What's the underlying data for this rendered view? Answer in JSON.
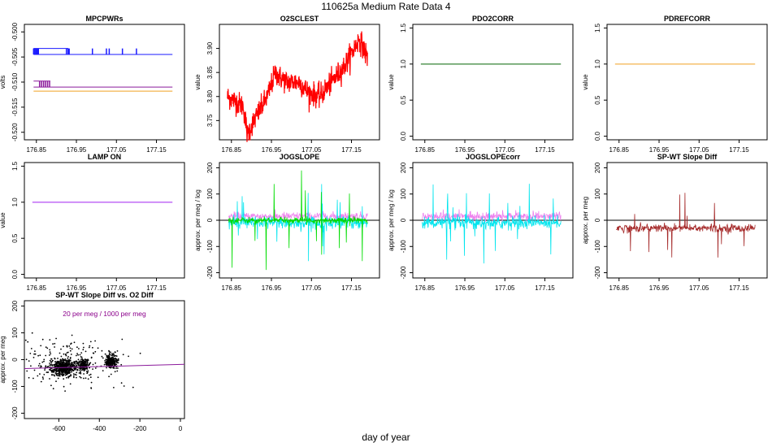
{
  "page_title": "110625a   Medium Rate Data 4",
  "x_caption": "day of year",
  "chart_data": [
    {
      "id": "mpcpwrs",
      "type": "line",
      "title": "MPCPWRs",
      "ylabel": "volts",
      "xlim": [
        176.82,
        177.22
      ],
      "ylim": [
        -0.5215,
        -0.4985
      ],
      "x_ticks": [
        176.85,
        176.95,
        177.05,
        177.15
      ],
      "x_tick_labels": [
        "176.85",
        "176.95",
        "177.05",
        "177.15"
      ],
      "y_ticks": [
        -0.52,
        -0.515,
        -0.51,
        -0.505,
        -0.5
      ],
      "y_tick_labels": [
        "-0.520",
        "-0.515",
        "-0.510",
        "-0.505",
        "-0.500"
      ],
      "series": [
        {
          "name": "blue",
          "color": "#1a1aff",
          "level": -0.5045,
          "spike_to": -0.5033,
          "spikes": [
            176.843,
            176.846,
            176.849,
            176.852,
            176.855,
            176.925,
            176.929,
            176.932,
            176.99,
            177.025,
            177.032,
            177.065,
            177.1
          ]
        },
        {
          "name": "purple",
          "color": "#8b1a9b",
          "level": -0.511,
          "spike_to": -0.5098,
          "spikes": [
            176.858,
            176.863,
            176.868,
            176.873,
            176.878,
            176.883
          ]
        },
        {
          "name": "orange",
          "color": "#f0a020",
          "level": -0.5118,
          "spike_to": null,
          "spikes": []
        }
      ]
    },
    {
      "id": "o2sclest",
      "type": "line",
      "title": "O2SCLEST",
      "ylabel": "value",
      "xlim": [
        176.82,
        177.22
      ],
      "ylim": [
        3.71,
        3.95
      ],
      "x_ticks": [
        176.85,
        176.95,
        177.05,
        177.15
      ],
      "x_tick_labels": [
        "176.85",
        "176.95",
        "177.05",
        "177.15"
      ],
      "y_ticks": [
        3.75,
        3.8,
        3.85,
        3.9
      ],
      "y_tick_labels": [
        "3.75",
        "3.80",
        "3.85",
        "3.90"
      ],
      "series": [
        {
          "name": "O2SCLEST",
          "color": "#ff0000",
          "noise": 0.012,
          "x": [
            176.84,
            176.86,
            176.88,
            176.89,
            176.9,
            176.92,
            176.94,
            176.96,
            176.97,
            176.99,
            177.02,
            177.04,
            177.07,
            177.1,
            177.13,
            177.15,
            177.17,
            177.19
          ],
          "y": [
            3.8,
            3.79,
            3.78,
            3.72,
            3.74,
            3.77,
            3.8,
            3.85,
            3.84,
            3.83,
            3.83,
            3.81,
            3.8,
            3.83,
            3.86,
            3.89,
            3.92,
            3.88
          ]
        }
      ]
    },
    {
      "id": "pdo2corr",
      "type": "line",
      "title": "PDO2CORR",
      "ylabel": "value",
      "xlim": [
        176.82,
        177.22
      ],
      "ylim": [
        -0.05,
        1.55
      ],
      "x_ticks": [
        176.85,
        176.95,
        177.05,
        177.15
      ],
      "x_tick_labels": [
        "176.85",
        "176.95",
        "177.05",
        "177.15"
      ],
      "y_ticks": [
        0.0,
        0.5,
        1.0,
        1.5
      ],
      "y_tick_labels": [
        "0.0",
        "0.5",
        "1.0",
        "1.5"
      ],
      "series": [
        {
          "name": "PDO2CORR",
          "color": "#006400",
          "x": [
            176.84,
            177.19
          ],
          "y": [
            1.0,
            1.0
          ]
        }
      ]
    },
    {
      "id": "pdrefcorr",
      "type": "line",
      "title": "PDREFCORR",
      "ylabel": "value",
      "xlim": [
        176.82,
        177.22
      ],
      "ylim": [
        -0.05,
        1.55
      ],
      "x_ticks": [
        176.85,
        176.95,
        177.05,
        177.15
      ],
      "x_tick_labels": [
        "176.85",
        "176.95",
        "177.05",
        "177.15"
      ],
      "y_ticks": [
        0.0,
        0.5,
        1.0,
        1.5
      ],
      "y_tick_labels": [
        "0.0",
        "0.5",
        "1.0",
        "1.5"
      ],
      "series": [
        {
          "name": "PDREFCORR",
          "color": "#f0a020",
          "x": [
            176.84,
            177.19
          ],
          "y": [
            1.0,
            1.0
          ]
        }
      ]
    },
    {
      "id": "lampon",
      "type": "line",
      "title": "LAMP ON",
      "ylabel": "value",
      "xlim": [
        176.82,
        177.22
      ],
      "ylim": [
        -0.05,
        1.55
      ],
      "x_ticks": [
        176.85,
        176.95,
        177.05,
        177.15
      ],
      "x_tick_labels": [
        "176.85",
        "176.95",
        "177.05",
        "177.15"
      ],
      "y_ticks": [
        0.0,
        0.5,
        1.0,
        1.5
      ],
      "y_tick_labels": [
        "0.0",
        "0.5",
        "1.0",
        "1.5"
      ],
      "series": [
        {
          "name": "LAMP ON",
          "color": "#a020f0",
          "x": [
            176.84,
            177.19
          ],
          "y": [
            1.0,
            1.0
          ]
        }
      ]
    },
    {
      "id": "jogslope",
      "type": "line",
      "title": "JOGSLOPE",
      "ylabel": "approx. per meg / log",
      "xlim": [
        176.82,
        177.22
      ],
      "ylim": [
        -220,
        220
      ],
      "x_ticks": [
        176.85,
        176.95,
        177.05,
        177.15
      ],
      "x_tick_labels": [
        "176.85",
        "176.95",
        "177.05",
        "177.15"
      ],
      "y_ticks": [
        -200,
        -100,
        0,
        100,
        200
      ],
      "y_tick_labels": [
        "-200",
        "-100",
        "0",
        "100",
        "200"
      ],
      "hline": 0,
      "series": [
        {
          "name": "magenta",
          "color": "#ee82ee",
          "level": 15,
          "noise": 8,
          "spike_prob": 0,
          "spike_max": 0
        },
        {
          "name": "cyan",
          "color": "#00e5ee",
          "level": -10,
          "noise": 12,
          "spike_prob": 0.03,
          "spike_max": 150
        },
        {
          "name": "green",
          "color": "#00dd00",
          "level": 0,
          "noise": 6,
          "spike_prob": 0.035,
          "spike_max": 190
        }
      ]
    },
    {
      "id": "jogslopecorr",
      "type": "line",
      "title": "JOGSLOPEcorr",
      "ylabel": "approx. per meg / log",
      "xlim": [
        176.82,
        177.22
      ],
      "ylim": [
        -220,
        220
      ],
      "x_ticks": [
        176.85,
        176.95,
        177.05,
        177.15
      ],
      "x_tick_labels": [
        "176.85",
        "176.95",
        "177.05",
        "177.15"
      ],
      "y_ticks": [
        -200,
        -100,
        0,
        100,
        200
      ],
      "y_tick_labels": [
        "-200",
        "-100",
        "0",
        "100",
        "200"
      ],
      "hline": 0,
      "series": [
        {
          "name": "magenta",
          "color": "#ee82ee",
          "level": 15,
          "noise": 8,
          "spike_prob": 0.01,
          "spike_max": 30
        },
        {
          "name": "cyan",
          "color": "#00e5ee",
          "level": -10,
          "noise": 12,
          "spike_prob": 0.03,
          "spike_max": 160
        }
      ]
    },
    {
      "id": "spwt",
      "type": "line",
      "title": "SP-WT Slope Diff",
      "ylabel": "approx. per meg",
      "xlim": [
        176.82,
        177.22
      ],
      "ylim": [
        -220,
        220
      ],
      "x_ticks": [
        176.85,
        176.95,
        177.05,
        177.15
      ],
      "x_tick_labels": [
        "176.85",
        "176.95",
        "177.05",
        "177.15"
      ],
      "y_ticks": [
        -200,
        -100,
        0,
        100,
        200
      ],
      "y_tick_labels": [
        "-200",
        "-100",
        "0",
        "100",
        "200"
      ],
      "hline": 0,
      "series": [
        {
          "name": "SP-WT",
          "color": "#a52a2a",
          "level": -30,
          "noise": 8,
          "spike_prob": 0.03,
          "spike_max": 140
        }
      ]
    },
    {
      "id": "scatter",
      "type": "scatter",
      "title": "SP-WT Slope Diff vs. O2 Diff",
      "ylabel": "approx. per meg",
      "xlim": [
        -770,
        20
      ],
      "ylim": [
        -220,
        220
      ],
      "x_ticks": [
        -600,
        -400,
        -200,
        0
      ],
      "x_tick_labels": [
        "-600",
        "-400",
        "-200",
        "0"
      ],
      "y_ticks": [
        -200,
        -100,
        0,
        100,
        200
      ],
      "y_tick_labels": [
        "-200",
        "-100",
        "0",
        "100",
        "200"
      ],
      "annotation": "20 per meg / 1000 per meg",
      "annotation_color": "#8b008b",
      "fit": {
        "color": "#8b1a9b",
        "slope": 0.02,
        "intercept": -18
      },
      "clusters": [
        {
          "cx": -580,
          "cy": -30,
          "sx": 30,
          "sy": 15,
          "n": 500
        },
        {
          "cx": -480,
          "cy": -20,
          "sx": 15,
          "sy": 12,
          "n": 150
        },
        {
          "cx": -340,
          "cy": -5,
          "sx": 15,
          "sy": 12,
          "n": 250
        },
        {
          "cx": -560,
          "cy": -10,
          "sx": 120,
          "sy": 45,
          "n": 220
        }
      ]
    }
  ]
}
